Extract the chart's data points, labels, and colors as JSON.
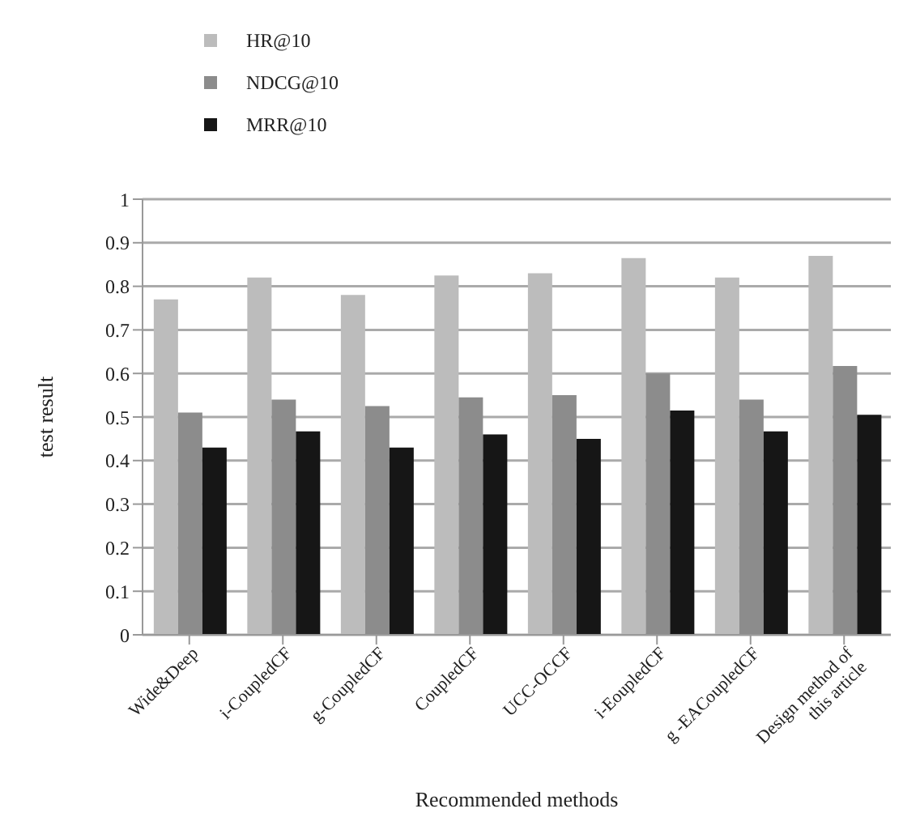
{
  "chart_data": {
    "type": "bar",
    "xlabel": "Recommended methods",
    "ylabel": "test result",
    "categories": [
      "Wide&Deep",
      "i-CoupledCF",
      "g-CoupledCF",
      "CoupledCF",
      "UCC-OCCF",
      "i-EoupledCF",
      "g -EACoupledCF",
      "Design method of this article"
    ],
    "series": [
      {
        "name": "HR@10",
        "color": "#bcbcbc",
        "values": [
          0.77,
          0.82,
          0.78,
          0.825,
          0.83,
          0.865,
          0.82,
          0.87
        ]
      },
      {
        "name": "NDCG@10",
        "color": "#8c8c8c",
        "values": [
          0.51,
          0.54,
          0.525,
          0.545,
          0.55,
          0.6,
          0.54,
          0.617
        ]
      },
      {
        "name": "MRR@10",
        "color": "#161616",
        "values": [
          0.43,
          0.467,
          0.43,
          0.46,
          0.45,
          0.515,
          0.467,
          0.505
        ]
      }
    ],
    "ylim": [
      0,
      1
    ],
    "yticks": [
      0,
      0.1,
      0.2,
      0.3,
      0.4,
      0.5,
      0.6,
      0.7,
      0.8,
      0.9,
      1
    ],
    "grid": "y",
    "legend": "top left"
  }
}
